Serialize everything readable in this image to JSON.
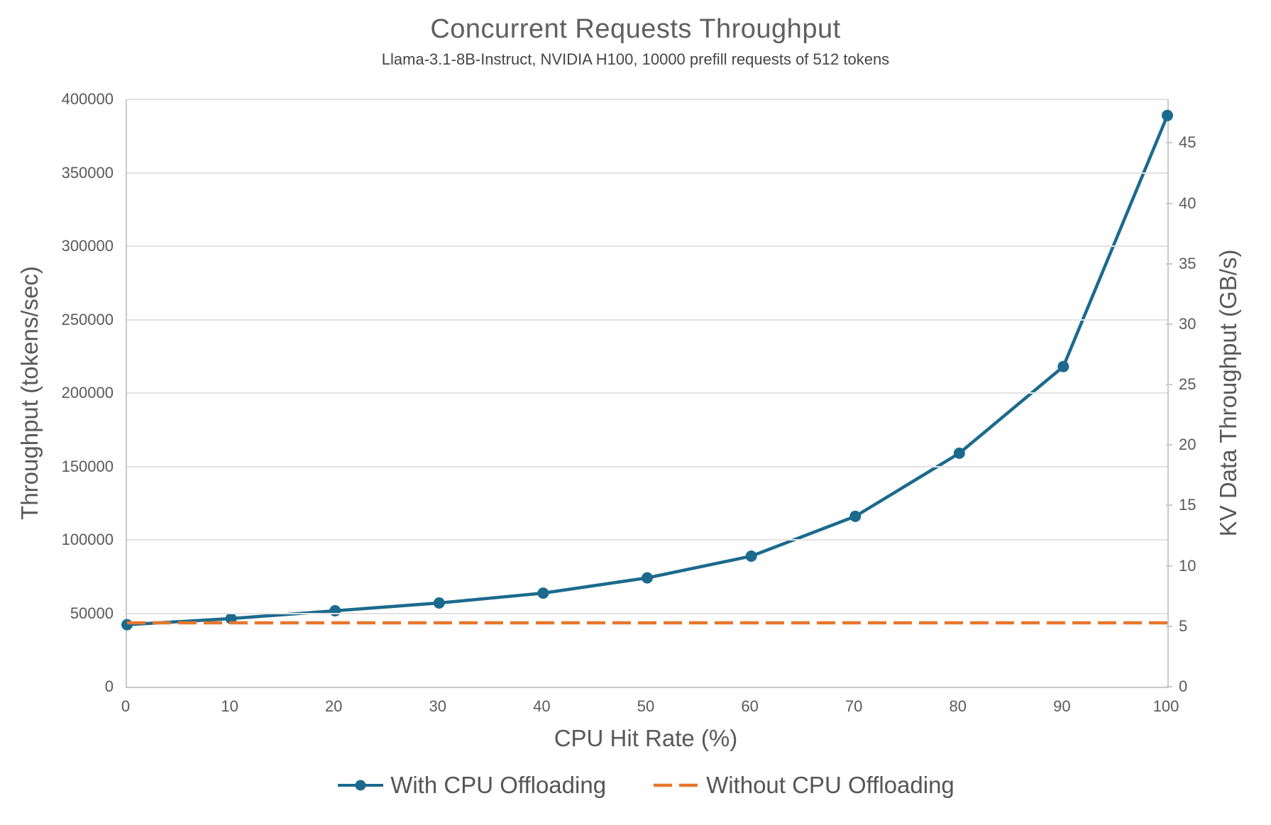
{
  "title": "Concurrent Requests Throughput",
  "subtitle": "Llama-3.1-8B-Instruct, NVIDIA H100, 10000 prefill requests of 512 tokens",
  "colors": {
    "with_offloading_line": "#1b6a8d",
    "without_offloading_line": "#e8762d",
    "gridline": "#e2e2e2",
    "axis_line": "#c9c9c9",
    "text": "#595959"
  },
  "chart_data": {
    "type": "line",
    "title": "Concurrent Requests Throughput",
    "subtitle": "Llama-3.1-8B-Instruct, NVIDIA H100, 10000 prefill requests of 512 tokens",
    "xlabel": "CPU Hit Rate (%)",
    "ylabel_left": "Throughput (tokens/sec)",
    "ylabel_right": "KV Data Throughput (GB/s)",
    "grid": "horizontal",
    "legend_position": "bottom",
    "x": [
      0,
      10,
      20,
      30,
      40,
      50,
      60,
      70,
      80,
      90,
      100
    ],
    "series": [
      {
        "name": "With CPU Offloading",
        "style": "solid-with-markers",
        "color": "#1b6a8d",
        "values": [
          42200,
          46400,
          51700,
          57000,
          63700,
          74100,
          88900,
          116000,
          159000,
          218000,
          389000
        ]
      },
      {
        "name": "Without CPU Offloading",
        "style": "dashed",
        "color": "#e8762d",
        "values": [
          43500,
          43500,
          43500,
          43500,
          43500,
          43500,
          43500,
          43500,
          43500,
          43500,
          43500
        ]
      }
    ],
    "left_axis": {
      "min": 0,
      "max": 400000,
      "ticks": [
        0,
        50000,
        100000,
        150000,
        200000,
        250000,
        300000,
        350000,
        400000
      ]
    },
    "right_axis": {
      "min": 0,
      "max": 48.6,
      "ticks": [
        0,
        5,
        10,
        15,
        20,
        25,
        30,
        35,
        40,
        45
      ]
    },
    "x_axis": {
      "min": 0,
      "max": 100,
      "ticks": [
        0,
        10,
        20,
        30,
        40,
        50,
        60,
        70,
        80,
        90,
        100
      ]
    }
  }
}
